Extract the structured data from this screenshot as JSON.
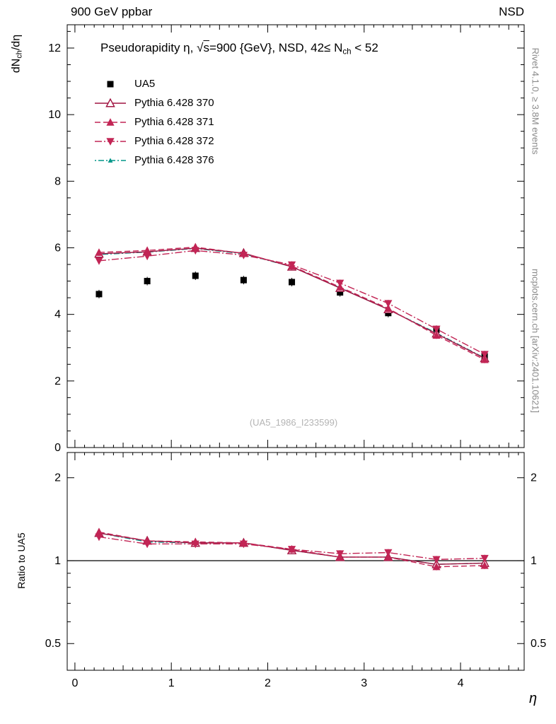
{
  "header": {
    "left": "900 GeV ppbar",
    "right": "NSD"
  },
  "title_parts": [
    {
      "t": "Pseudorapidity η, "
    },
    {
      "t": "√"
    },
    {
      "t": "s",
      "overline": true
    },
    {
      "t": "=900 {GeV}, NSD, 42≤ N"
    },
    {
      "t": "ch",
      "sub": true
    },
    {
      "t": " < 52"
    }
  ],
  "watermark": "(UA5_1986_I233599)",
  "side": {
    "top": "Rivet 4.1.0, ≥ 3.8M events",
    "bottom": "mcplots.cern.ch [arXiv:2401.10621]"
  },
  "axes": {
    "ylabel_parts": [
      {
        "t": "dN"
      },
      {
        "t": "ch",
        "sub": true
      },
      {
        "t": "/dη"
      }
    ],
    "ratio_ylabel": "Ratio to UA5",
    "xlabel": "η"
  },
  "colors": {
    "frame": "#000000",
    "gray_text": "#8a8a8a",
    "watermark": "#b4b4b4"
  },
  "chart_data": {
    "type": "line",
    "title": "Pseudorapidity η, √s=900 {GeV}, NSD, 42≤ N_ch < 52",
    "xlabel": "η",
    "x": [
      0.25,
      0.75,
      1.25,
      1.75,
      2.25,
      2.75,
      3.25,
      3.75,
      4.25
    ],
    "xlim": [
      -0.08,
      4.66
    ],
    "xticks": [
      0,
      1,
      2,
      3,
      4
    ],
    "main": {
      "ylabel": "dN_ch/dη",
      "ylim": [
        0,
        12.7
      ],
      "yticks": [
        0,
        2,
        4,
        6,
        8,
        10,
        12
      ],
      "series": [
        {
          "name": "UA5",
          "marker": "square",
          "color": "#000000",
          "values": [
            4.61,
            5.0,
            5.16,
            5.03,
            4.97,
            4.66,
            4.04,
            3.54,
            2.74
          ]
        },
        {
          "name": "Pythia 6.428 370",
          "marker": "triangle-open",
          "dash": "solid",
          "color": "#a01441",
          "values": [
            5.82,
            5.88,
            5.99,
            5.84,
            5.43,
            4.79,
            4.15,
            3.42,
            2.68
          ]
        },
        {
          "name": "Pythia 6.428 371",
          "marker": "triangle-filled",
          "dash": "dashed",
          "color": "#c22555",
          "values": [
            5.86,
            5.92,
            6.02,
            5.83,
            5.45,
            4.82,
            4.18,
            3.37,
            2.64
          ]
        },
        {
          "name": "Pythia 6.428 372",
          "marker": "triangle-down",
          "dash": "dashdot",
          "color": "#c22555",
          "values": [
            5.61,
            5.75,
            5.92,
            5.78,
            5.49,
            4.94,
            4.33,
            3.56,
            2.8
          ]
        },
        {
          "name": "Pythia 6.428 376",
          "marker": "triangle-small",
          "dash": "dashdot2",
          "color": "#009688",
          "values": [
            5.8,
            5.87,
            5.98,
            5.82,
            5.43,
            4.8,
            4.15,
            3.44,
            2.69
          ]
        }
      ]
    },
    "ratio": {
      "ylabel": "Ratio to UA5",
      "scale": "log",
      "ylim": [
        0.4,
        2.47
      ],
      "yticks": [
        0.5,
        1,
        2
      ],
      "yticks_minor": [
        0.6,
        0.7,
        0.8,
        0.9
      ],
      "baseline": 1,
      "series": [
        {
          "name": "Pythia 6.428 370",
          "values": [
            1.26,
            1.18,
            1.16,
            1.16,
            1.09,
            1.03,
            1.03,
            0.97,
            0.98
          ]
        },
        {
          "name": "Pythia 6.428 371",
          "values": [
            1.27,
            1.18,
            1.17,
            1.16,
            1.1,
            1.03,
            1.03,
            0.95,
            0.96
          ]
        },
        {
          "name": "Pythia 6.428 372",
          "values": [
            1.22,
            1.15,
            1.15,
            1.15,
            1.1,
            1.06,
            1.07,
            1.01,
            1.02
          ]
        },
        {
          "name": "Pythia 6.428 376",
          "values": [
            1.26,
            1.17,
            1.16,
            1.16,
            1.09,
            1.03,
            1.03,
            0.97,
            0.98
          ]
        }
      ]
    },
    "legend_position": "top-left",
    "grid": false
  }
}
